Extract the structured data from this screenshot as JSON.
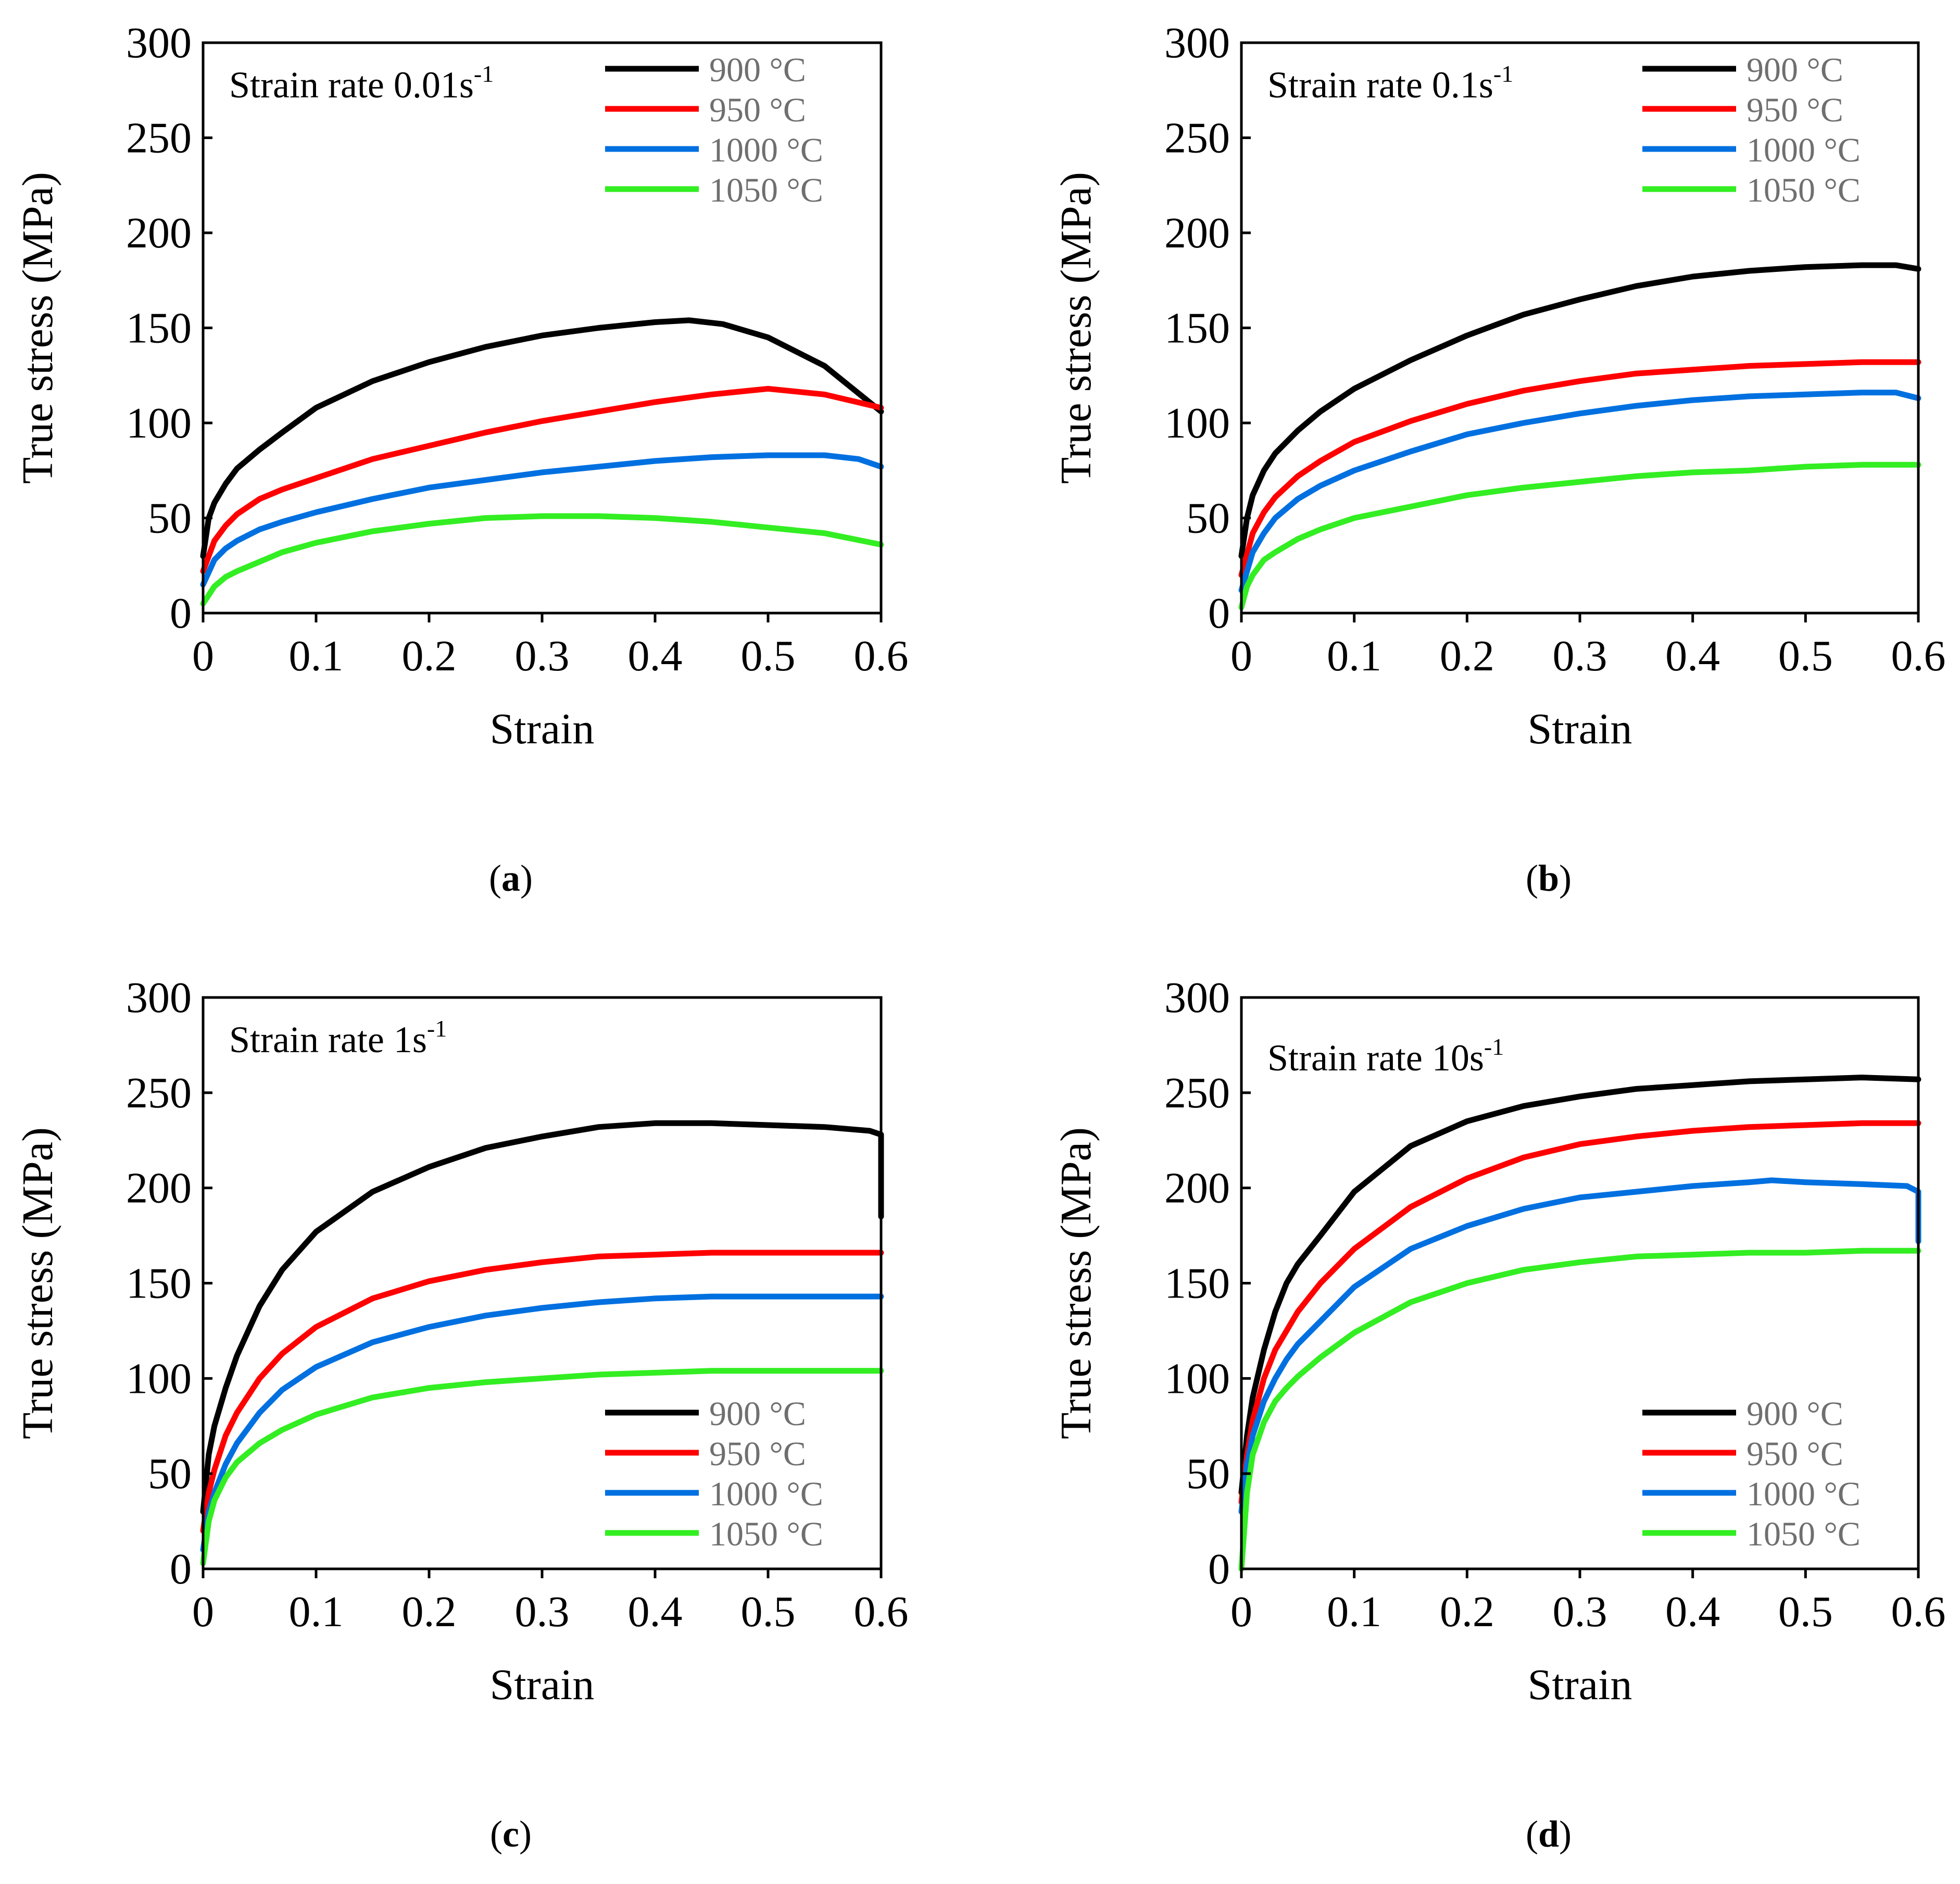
{
  "chart_data": [
    {
      "type": "line",
      "caption_letter": "a",
      "annotation": {
        "text": "Strain rate 0.01s",
        "sup": "-1"
      },
      "xlabel": "Strain",
      "ylabel": "True stress (MPa)",
      "xlim": [
        0,
        0.6
      ],
      "ylim": [
        0,
        300
      ],
      "xticks": [
        "0",
        "0.1",
        "0.2",
        "0.3",
        "0.4",
        "0.5",
        "0.6"
      ],
      "yticks": [
        "0",
        "50",
        "100",
        "150",
        "200",
        "250",
        "300"
      ],
      "legend_position": "top-right",
      "series": [
        {
          "name": "900 °C",
          "color": "#000000",
          "x": [
            0,
            0.005,
            0.01,
            0.02,
            0.03,
            0.05,
            0.07,
            0.1,
            0.15,
            0.2,
            0.25,
            0.3,
            0.35,
            0.4,
            0.43,
            0.46,
            0.5,
            0.55,
            0.6
          ],
          "y": [
            30,
            50,
            58,
            68,
            76,
            86,
            95,
            108,
            122,
            132,
            140,
            146,
            150,
            153,
            154,
            152,
            145,
            130,
            106
          ]
        },
        {
          "name": "950 °C",
          "color": "#ff0000",
          "x": [
            0,
            0.01,
            0.02,
            0.03,
            0.05,
            0.07,
            0.1,
            0.15,
            0.2,
            0.25,
            0.3,
            0.35,
            0.4,
            0.45,
            0.5,
            0.55,
            0.6
          ],
          "y": [
            22,
            38,
            46,
            52,
            60,
            65,
            71,
            81,
            88,
            95,
            101,
            106,
            111,
            115,
            118,
            115,
            108
          ]
        },
        {
          "name": "1000 °C",
          "color": "#0070e0",
          "x": [
            0,
            0.01,
            0.02,
            0.03,
            0.05,
            0.07,
            0.1,
            0.15,
            0.2,
            0.25,
            0.3,
            0.35,
            0.4,
            0.45,
            0.5,
            0.55,
            0.58,
            0.6
          ],
          "y": [
            15,
            28,
            34,
            38,
            44,
            48,
            53,
            60,
            66,
            70,
            74,
            77,
            80,
            82,
            83,
            83,
            81,
            77
          ]
        },
        {
          "name": "1050 °C",
          "color": "#33ee22",
          "x": [
            0,
            0.01,
            0.02,
            0.03,
            0.05,
            0.07,
            0.1,
            0.15,
            0.2,
            0.25,
            0.3,
            0.35,
            0.4,
            0.45,
            0.5,
            0.55,
            0.6
          ],
          "y": [
            5,
            14,
            19,
            22,
            27,
            32,
            37,
            43,
            47,
            50,
            51,
            51,
            50,
            48,
            45,
            42,
            36
          ]
        }
      ]
    },
    {
      "type": "line",
      "caption_letter": "b",
      "annotation": {
        "text": "Strain rate 0.1s",
        "sup": "-1"
      },
      "xlabel": "Strain",
      "ylabel": "True stress (MPa)",
      "xlim": [
        0,
        0.6
      ],
      "ylim": [
        0,
        300
      ],
      "xticks": [
        "0",
        "0.1",
        "0.2",
        "0.3",
        "0.4",
        "0.5",
        "0.6"
      ],
      "yticks": [
        "0",
        "50",
        "100",
        "150",
        "200",
        "250",
        "300"
      ],
      "legend_position": "top-right",
      "series": [
        {
          "name": "900 °C",
          "color": "#000000",
          "x": [
            0,
            0.005,
            0.01,
            0.02,
            0.03,
            0.05,
            0.07,
            0.1,
            0.15,
            0.2,
            0.25,
            0.3,
            0.35,
            0.4,
            0.45,
            0.5,
            0.55,
            0.58,
            0.6
          ],
          "y": [
            30,
            50,
            62,
            75,
            84,
            96,
            106,
            118,
            133,
            146,
            157,
            165,
            172,
            177,
            180,
            182,
            183,
            183,
            181
          ]
        },
        {
          "name": "950 °C",
          "color": "#ff0000",
          "x": [
            0,
            0.01,
            0.02,
            0.03,
            0.05,
            0.07,
            0.1,
            0.15,
            0.2,
            0.25,
            0.3,
            0.35,
            0.4,
            0.45,
            0.5,
            0.55,
            0.6
          ],
          "y": [
            20,
            42,
            53,
            61,
            72,
            80,
            90,
            101,
            110,
            117,
            122,
            126,
            128,
            130,
            131,
            132,
            132
          ]
        },
        {
          "name": "1000 °C",
          "color": "#0070e0",
          "x": [
            0,
            0.01,
            0.02,
            0.03,
            0.05,
            0.07,
            0.1,
            0.15,
            0.2,
            0.25,
            0.3,
            0.35,
            0.4,
            0.45,
            0.5,
            0.55,
            0.58,
            0.6
          ],
          "y": [
            12,
            32,
            42,
            50,
            60,
            67,
            75,
            85,
            94,
            100,
            105,
            109,
            112,
            114,
            115,
            116,
            116,
            113
          ]
        },
        {
          "name": "1050 °C",
          "color": "#33ee22",
          "x": [
            0,
            0.005,
            0.01,
            0.02,
            0.03,
            0.05,
            0.07,
            0.1,
            0.15,
            0.2,
            0.25,
            0.3,
            0.35,
            0.4,
            0.45,
            0.5,
            0.55,
            0.6
          ],
          "y": [
            3,
            14,
            20,
            28,
            32,
            39,
            44,
            50,
            56,
            62,
            66,
            69,
            72,
            74,
            75,
            77,
            78,
            78
          ]
        }
      ]
    },
    {
      "type": "line",
      "caption_letter": "c",
      "annotation": {
        "text": "Strain rate 1s",
        "sup": "-1"
      },
      "xlabel": "Strain",
      "ylabel": "True stress (MPa)",
      "xlim": [
        0,
        0.6
      ],
      "ylim": [
        0,
        300
      ],
      "xticks": [
        "0",
        "0.1",
        "0.2",
        "0.3",
        "0.4",
        "0.5",
        "0.6"
      ],
      "yticks": [
        "0",
        "50",
        "100",
        "150",
        "200",
        "250",
        "300"
      ],
      "legend_position": "bottom-right",
      "series": [
        {
          "name": "900 °C",
          "color": "#000000",
          "x": [
            0,
            0.005,
            0.01,
            0.02,
            0.03,
            0.05,
            0.07,
            0.1,
            0.15,
            0.2,
            0.25,
            0.3,
            0.35,
            0.4,
            0.45,
            0.5,
            0.55,
            0.59,
            0.6,
            0.6
          ],
          "y": [
            30,
            60,
            75,
            95,
            112,
            138,
            157,
            177,
            198,
            211,
            221,
            227,
            232,
            234,
            234,
            233,
            232,
            230,
            228,
            185
          ]
        },
        {
          "name": "950 °C",
          "color": "#ff0000",
          "x": [
            0,
            0.005,
            0.01,
            0.02,
            0.03,
            0.05,
            0.07,
            0.1,
            0.15,
            0.2,
            0.25,
            0.3,
            0.35,
            0.4,
            0.45,
            0.5,
            0.55,
            0.6
          ],
          "y": [
            20,
            40,
            52,
            70,
            82,
            100,
            113,
            127,
            142,
            151,
            157,
            161,
            164,
            165,
            166,
            166,
            166,
            166
          ]
        },
        {
          "name": "1000 °C",
          "color": "#0070e0",
          "x": [
            0,
            0.005,
            0.01,
            0.02,
            0.03,
            0.05,
            0.07,
            0.1,
            0.15,
            0.2,
            0.25,
            0.3,
            0.35,
            0.4,
            0.45,
            0.5,
            0.55,
            0.6
          ],
          "y": [
            10,
            30,
            40,
            55,
            66,
            82,
            94,
            106,
            119,
            127,
            133,
            137,
            140,
            142,
            143,
            143,
            143,
            143
          ]
        },
        {
          "name": "1050 °C",
          "color": "#33ee22",
          "x": [
            0,
            0.005,
            0.01,
            0.02,
            0.03,
            0.05,
            0.07,
            0.1,
            0.15,
            0.2,
            0.25,
            0.3,
            0.35,
            0.4,
            0.45,
            0.5,
            0.55,
            0.6
          ],
          "y": [
            3,
            25,
            36,
            48,
            56,
            66,
            73,
            81,
            90,
            95,
            98,
            100,
            102,
            103,
            104,
            104,
            104,
            104
          ]
        }
      ]
    },
    {
      "type": "line",
      "caption_letter": "d",
      "annotation": {
        "text": "Strain rate 10s",
        "sup": "-1"
      },
      "xlabel": "Strain",
      "ylabel": "True stress (MPa)",
      "xlim": [
        0,
        0.6
      ],
      "ylim": [
        0,
        300
      ],
      "xticks": [
        "0",
        "0.1",
        "0.2",
        "0.3",
        "0.4",
        "0.5",
        "0.6"
      ],
      "yticks": [
        "0",
        "50",
        "100",
        "150",
        "200",
        "250",
        "300"
      ],
      "legend_position": "bottom-right",
      "series": [
        {
          "name": "900 °C",
          "color": "#000000",
          "x": [
            0,
            0.005,
            0.01,
            0.02,
            0.03,
            0.04,
            0.05,
            0.07,
            0.1,
            0.15,
            0.2,
            0.25,
            0.3,
            0.35,
            0.4,
            0.45,
            0.5,
            0.55,
            0.6
          ],
          "y": [
            40,
            70,
            90,
            115,
            135,
            150,
            160,
            175,
            198,
            222,
            235,
            243,
            248,
            252,
            254,
            256,
            257,
            258,
            257
          ]
        },
        {
          "name": "950 °C",
          "color": "#ff0000",
          "x": [
            0,
            0.005,
            0.01,
            0.02,
            0.03,
            0.04,
            0.05,
            0.07,
            0.1,
            0.15,
            0.2,
            0.25,
            0.3,
            0.35,
            0.4,
            0.45,
            0.5,
            0.55,
            0.6
          ],
          "y": [
            35,
            60,
            78,
            100,
            115,
            125,
            135,
            150,
            168,
            190,
            205,
            216,
            223,
            227,
            230,
            232,
            233,
            234,
            234
          ]
        },
        {
          "name": "1000 °C",
          "color": "#0070e0",
          "x": [
            0,
            0.005,
            0.01,
            0.02,
            0.03,
            0.04,
            0.05,
            0.07,
            0.1,
            0.15,
            0.2,
            0.25,
            0.3,
            0.35,
            0.4,
            0.45,
            0.47,
            0.5,
            0.55,
            0.59,
            0.6,
            0.6
          ],
          "y": [
            30,
            55,
            70,
            88,
            100,
            110,
            118,
            130,
            148,
            168,
            180,
            189,
            195,
            198,
            201,
            203,
            204,
            203,
            202,
            201,
            198,
            172
          ]
        },
        {
          "name": "1050 °C",
          "color": "#33ee22",
          "x": [
            0,
            0.005,
            0.01,
            0.02,
            0.03,
            0.04,
            0.05,
            0.07,
            0.1,
            0.15,
            0.2,
            0.25,
            0.3,
            0.35,
            0.4,
            0.45,
            0.5,
            0.55,
            0.6
          ],
          "y": [
            0,
            40,
            60,
            77,
            88,
            95,
            101,
            111,
            124,
            140,
            150,
            157,
            161,
            164,
            165,
            166,
            166,
            167,
            167
          ]
        }
      ]
    }
  ]
}
